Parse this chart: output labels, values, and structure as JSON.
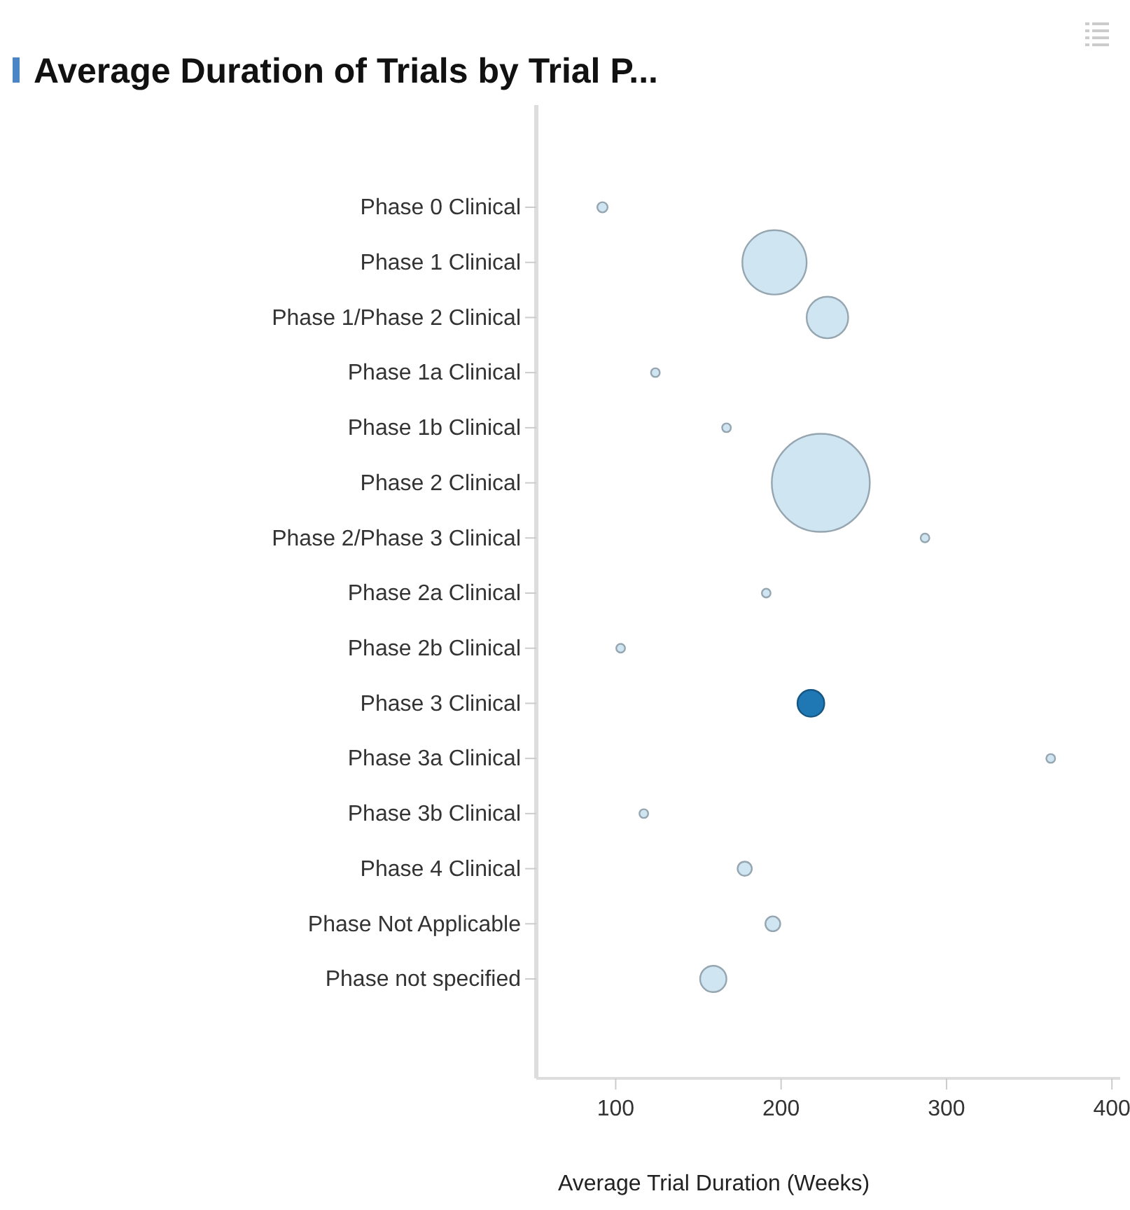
{
  "chart_data": {
    "type": "bubble",
    "title": "Average Duration of Trials by Trial P...",
    "xlabel": "Average Trial Duration (Weeks)",
    "orientation": "horizontal",
    "categories": [
      "Phase 0 Clinical",
      "Phase 1 Clinical",
      "Phase 1/Phase 2 Clinical",
      "Phase 1a Clinical",
      "Phase 1b Clinical",
      "Phase 2 Clinical",
      "Phase 2/Phase 3 Clinical",
      "Phase 2a Clinical",
      "Phase 2b Clinical",
      "Phase 3 Clinical",
      "Phase 3a Clinical",
      "Phase 3b Clinical",
      "Phase 4 Clinical",
      "Phase Not Applicable",
      "Phase not specified"
    ],
    "values": [
      92,
      196,
      228,
      124,
      167,
      224,
      287,
      191,
      103,
      218,
      363,
      117,
      178,
      195,
      159
    ],
    "sizes": [
      0.011,
      0.43,
      0.18,
      0.008,
      0.008,
      1,
      0.008,
      0.008,
      0.008,
      0.075,
      0.008,
      0.008,
      0.021,
      0.023,
      0.072
    ],
    "colors": [
      "#cfe5f2",
      "#cfe5f2",
      "#cfe5f2",
      "#cfe5f2",
      "#cfe5f2",
      "#cfe5f2",
      "#cfe5f2",
      "#cfe5f2",
      "#cfe5f2",
      "#1f77b4",
      "#cfe5f2",
      "#cfe5f2",
      "#cfe5f2",
      "#cfe5f2",
      "#cfe5f2"
    ],
    "xlim": [
      52,
      405
    ],
    "xticks": [
      100,
      200,
      300,
      400
    ],
    "grid": false,
    "marker": "circle"
  }
}
